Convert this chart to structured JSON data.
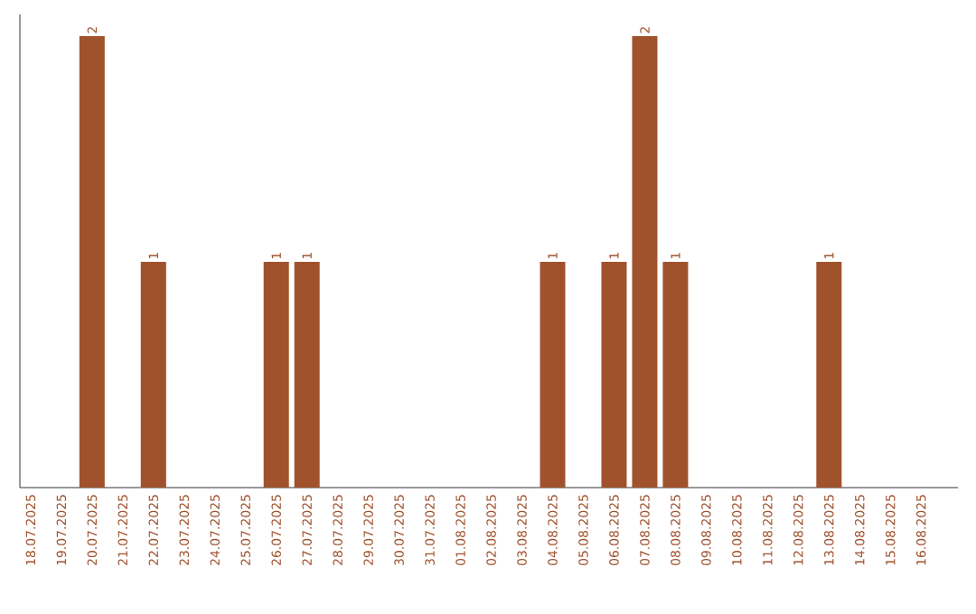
{
  "chart_data": {
    "type": "bar",
    "categories": [
      "18.07.2025",
      "19.07.2025",
      "20.07.2025",
      "21.07.2025",
      "22.07.2025",
      "23.07.2025",
      "24.07.2025",
      "25.07.2025",
      "26.07.2025",
      "27.07.2025",
      "28.07.2025",
      "29.07.2025",
      "30.07.2025",
      "31.07.2025",
      "01.08.2025",
      "02.08.2025",
      "03.08.2025",
      "04.08.2025",
      "05.08.2025",
      "06.08.2025",
      "07.08.2025",
      "08.08.2025",
      "09.08.2025",
      "10.08.2025",
      "11.08.2025",
      "12.08.2025",
      "13.08.2025",
      "14.08.2025",
      "15.08.2025",
      "16.08.2025"
    ],
    "values": [
      0,
      0,
      2,
      0,
      1,
      0,
      0,
      0,
      1,
      1,
      0,
      0,
      0,
      0,
      0,
      0,
      0,
      1,
      0,
      1,
      2,
      1,
      0,
      0,
      0,
      0,
      1,
      0,
      0,
      0
    ],
    "value_labels": [
      null,
      null,
      "2",
      null,
      "1",
      null,
      null,
      null,
      "1",
      "1",
      null,
      null,
      null,
      null,
      null,
      null,
      null,
      "1",
      null,
      "1",
      "2",
      "1",
      null,
      null,
      null,
      null,
      "1",
      null,
      null,
      null
    ],
    "color": "#a0522d",
    "tick_labels": "x",
    "grid": false
  }
}
